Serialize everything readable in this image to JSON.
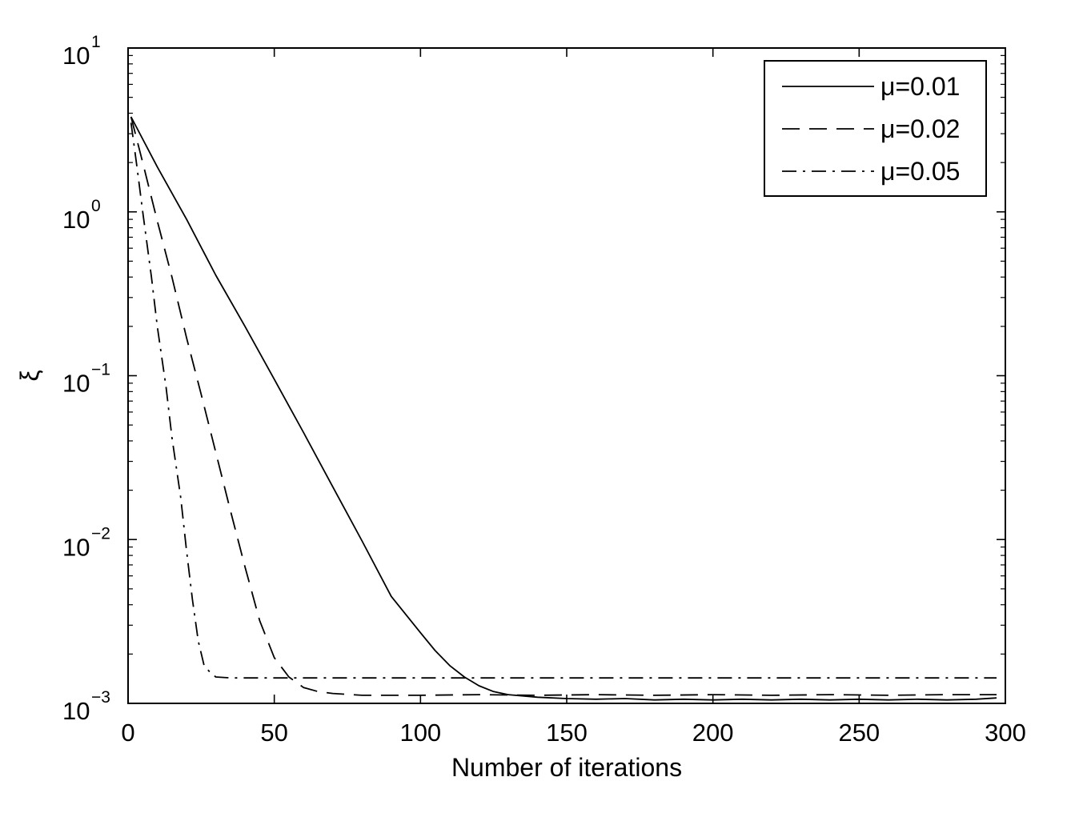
{
  "chart_data": {
    "type": "line",
    "xlabel": "Number of iterations",
    "ylabel": "ξ",
    "yscale": "log",
    "xlim": [
      0,
      300
    ],
    "ylim": [
      0.001,
      10
    ],
    "grid": false,
    "legend_position": "top-right",
    "x_ticks": [
      "0",
      "50",
      "100",
      "150",
      "200",
      "250",
      "300"
    ],
    "y_ticks": [
      {
        "base": "10",
        "exp": "1"
      },
      {
        "base": "10",
        "exp": "0"
      },
      {
        "base": "10",
        "exp": "−1"
      },
      {
        "base": "10",
        "exp": "−2"
      },
      {
        "base": "10",
        "exp": "−3"
      }
    ],
    "series": [
      {
        "name": "μ=0.01",
        "style": "solid",
        "x": [
          1,
          10,
          20,
          30,
          40,
          50,
          60,
          70,
          80,
          90,
          100,
          105,
          110,
          115,
          120,
          125,
          130,
          140,
          150,
          160,
          170,
          180,
          190,
          200,
          210,
          220,
          230,
          240,
          250,
          260,
          270,
          280,
          290,
          297
        ],
        "y": [
          3.8,
          1.88,
          0.9,
          0.41,
          0.2,
          0.095,
          0.045,
          0.021,
          0.0098,
          0.0045,
          0.0027,
          0.0021,
          0.0017,
          0.00145,
          0.00128,
          0.00118,
          0.00113,
          0.00109,
          0.00107,
          0.00106,
          0.00107,
          0.00105,
          0.00106,
          0.00105,
          0.00106,
          0.00105,
          0.00106,
          0.00105,
          0.00106,
          0.00105,
          0.00106,
          0.00105,
          0.00106,
          0.00108
        ]
      },
      {
        "name": "μ=0.02",
        "style": "dashed",
        "x": [
          1,
          5,
          10,
          15,
          20,
          25,
          30,
          35,
          40,
          45,
          50,
          55,
          60,
          65,
          70,
          80,
          90,
          100,
          120,
          140,
          160,
          180,
          200,
          220,
          240,
          260,
          280,
          297
        ],
        "y": [
          3.8,
          2.0,
          0.88,
          0.4,
          0.17,
          0.077,
          0.034,
          0.015,
          0.0068,
          0.0032,
          0.0019,
          0.00145,
          0.00125,
          0.00118,
          0.00115,
          0.00112,
          0.00112,
          0.00112,
          0.00113,
          0.00112,
          0.00113,
          0.00112,
          0.00113,
          0.00112,
          0.00113,
          0.00112,
          0.00113,
          0.00113
        ]
      },
      {
        "name": "μ=0.05",
        "style": "dashdot",
        "x": [
          1,
          3,
          5,
          8,
          10,
          13,
          15,
          18,
          20,
          22,
          24,
          26,
          28,
          30,
          35,
          40,
          60,
          80,
          100,
          150,
          200,
          250,
          297
        ],
        "y": [
          3.5,
          1.9,
          1.0,
          0.4,
          0.2,
          0.085,
          0.042,
          0.018,
          0.0085,
          0.0043,
          0.0024,
          0.0017,
          0.00155,
          0.00145,
          0.00143,
          0.00143,
          0.00143,
          0.00143,
          0.00143,
          0.00143,
          0.00143,
          0.00143,
          0.00143
        ]
      }
    ]
  }
}
